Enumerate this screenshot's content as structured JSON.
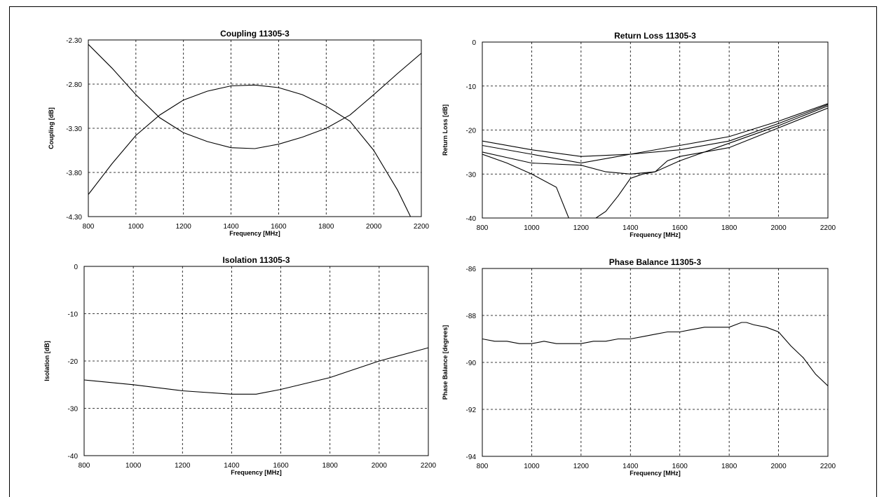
{
  "chart_data": [
    {
      "type": "line",
      "title": "Coupling 11305-3",
      "xlabel": "Frequency [MHz]",
      "ylabel": "Coupling [dB]",
      "xlim": [
        800,
        2200
      ],
      "ylim": [
        -4.3,
        -2.3
      ],
      "xticks": [
        800,
        1000,
        1200,
        1400,
        1600,
        1800,
        2000,
        2200
      ],
      "xtick_labels": [
        "800",
        "1000",
        "1200",
        "1400",
        "1600",
        "1800",
        "2000",
        "2200"
      ],
      "yticks": [
        -2.3,
        -2.8,
        -3.3,
        -3.8,
        -4.3
      ],
      "ytick_labels": [
        "-2.30",
        "-2.80",
        "-3.30",
        "-3.80",
        "-4.30"
      ],
      "grid": true,
      "series": [
        {
          "x": [
            800,
            900,
            1000,
            1100,
            1200,
            1300,
            1400,
            1500,
            1600,
            1700,
            1800,
            1900,
            2000,
            2100,
            2200
          ],
          "y": [
            -4.05,
            -3.7,
            -3.38,
            -3.15,
            -2.98,
            -2.88,
            -2.82,
            -2.81,
            -2.84,
            -2.92,
            -3.05,
            -3.22,
            -3.55,
            -4.0,
            -4.55
          ]
        },
        {
          "x": [
            800,
            900,
            1000,
            1100,
            1200,
            1300,
            1400,
            1500,
            1600,
            1700,
            1800,
            1900,
            2000,
            2100,
            2200
          ],
          "y": [
            -2.35,
            -2.62,
            -2.92,
            -3.18,
            -3.35,
            -3.45,
            -3.52,
            -3.53,
            -3.48,
            -3.4,
            -3.3,
            -3.15,
            -2.92,
            -2.68,
            -2.45
          ]
        }
      ]
    },
    {
      "type": "line",
      "title": "Return Loss 11305-3",
      "xlabel": "Frequency [MHz]",
      "ylabel": "Return Loss [dB]",
      "xlim": [
        800,
        2200
      ],
      "ylim": [
        -40,
        0
      ],
      "xticks": [
        800,
        1000,
        1200,
        1400,
        1600,
        1800,
        2000,
        2200
      ],
      "xtick_labels": [
        "800",
        "1000",
        "1200",
        "1400",
        "1600",
        "1800",
        "2000",
        "2200"
      ],
      "yticks": [
        0,
        -10,
        -20,
        -30,
        -40
      ],
      "ytick_labels": [
        "0",
        "-10",
        "-20",
        "-30",
        "-40"
      ],
      "grid": true,
      "series": [
        {
          "x": [
            800,
            1000,
            1200,
            1400,
            1600,
            1800,
            2000,
            2200
          ],
          "y": [
            -22.5,
            -24.5,
            -26,
            -25.5,
            -23.5,
            -21.5,
            -18,
            -14
          ]
        },
        {
          "x": [
            800,
            1000,
            1200,
            1400,
            1600,
            1800,
            2000,
            2200
          ],
          "y": [
            -23.5,
            -25.5,
            -27.5,
            -25.5,
            -24.5,
            -22.5,
            -18.5,
            -14.2
          ]
        },
        {
          "x": [
            800,
            1000,
            1200,
            1300,
            1400,
            1500,
            1600,
            1800,
            2000,
            2200
          ],
          "y": [
            -25,
            -27.5,
            -28,
            -29.5,
            -30,
            -29.5,
            -27,
            -23,
            -19,
            -14.5
          ]
        },
        {
          "x": [
            800,
            900,
            1000,
            1100,
            1150,
            1260,
            1300,
            1350,
            1400,
            1450,
            1500,
            1550,
            1600,
            1700,
            1800,
            2000,
            2200
          ],
          "y": [
            -25.5,
            -27.5,
            -30,
            -33,
            -40,
            -40,
            -38.5,
            -35,
            -31,
            -30,
            -29.5,
            -27,
            -26,
            -25,
            -24,
            -19.5,
            -15
          ]
        }
      ]
    },
    {
      "type": "line",
      "title": "Isolation 11305-3",
      "xlabel": "Frequency [MHz]",
      "ylabel": "Isolation [dB]",
      "xlim": [
        800,
        2200
      ],
      "ylim": [
        -40,
        0
      ],
      "xticks": [
        800,
        1000,
        1200,
        1400,
        1600,
        1800,
        2000,
        2200
      ],
      "xtick_labels": [
        "800",
        "1000",
        "1200",
        "1400",
        "1600",
        "1800",
        "2000",
        "2200"
      ],
      "yticks": [
        0,
        -10,
        -20,
        -30,
        -40
      ],
      "ytick_labels": [
        "0",
        "-10",
        "-20",
        "-30",
        "-40"
      ],
      "grid": true,
      "series": [
        {
          "x": [
            800,
            1000,
            1200,
            1400,
            1500,
            1600,
            1800,
            2000,
            2200
          ],
          "y": [
            -24,
            -25,
            -26.3,
            -27,
            -27,
            -26,
            -23.5,
            -20,
            -17.2
          ]
        }
      ]
    },
    {
      "type": "line",
      "title": "Phase Balance 11305-3",
      "xlabel": "Frequency [MHz]",
      "ylabel": "Phase Balance [degrees]",
      "xlim": [
        800,
        2200
      ],
      "ylim": [
        -94,
        -86
      ],
      "xticks": [
        800,
        1000,
        1200,
        1400,
        1600,
        1800,
        2000,
        2200
      ],
      "xtick_labels": [
        "800",
        "1000",
        "1200",
        "1400",
        "1600",
        "1800",
        "2000",
        "2200"
      ],
      "yticks": [
        -86,
        -88,
        -90,
        -92,
        -94
      ],
      "ytick_labels": [
        "-86",
        "-88",
        "-90",
        "-92",
        "-94"
      ],
      "grid": true,
      "series": [
        {
          "x": [
            800,
            850,
            900,
            950,
            1000,
            1050,
            1100,
            1150,
            1200,
            1250,
            1300,
            1350,
            1400,
            1450,
            1500,
            1550,
            1600,
            1650,
            1700,
            1750,
            1800,
            1850,
            1870,
            1900,
            1950,
            2000,
            2050,
            2100,
            2150,
            2200
          ],
          "y": [
            -89,
            -89.1,
            -89.1,
            -89.2,
            -89.2,
            -89.1,
            -89.2,
            -89.2,
            -89.2,
            -89.1,
            -89.1,
            -89.0,
            -89.0,
            -88.9,
            -88.8,
            -88.7,
            -88.7,
            -88.6,
            -88.5,
            -88.5,
            -88.5,
            -88.3,
            -88.3,
            -88.4,
            -88.5,
            -88.7,
            -89.3,
            -89.8,
            -90.5,
            -91.0
          ]
        }
      ]
    }
  ]
}
